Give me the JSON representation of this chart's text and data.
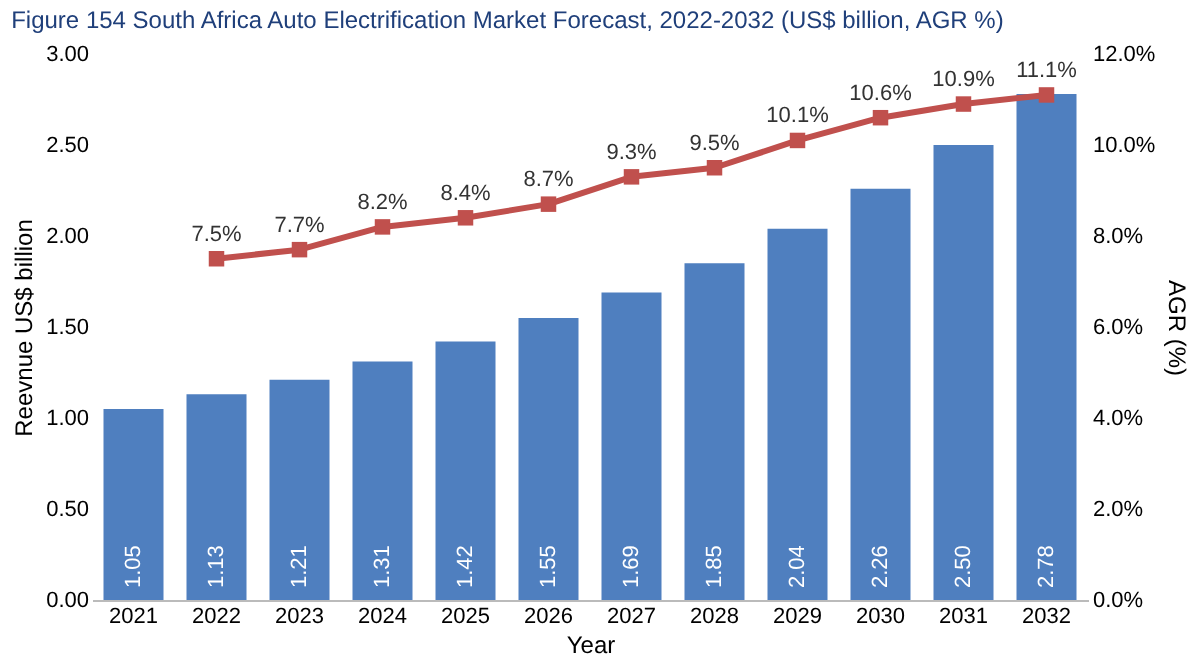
{
  "chart_data": {
    "type": "bar",
    "title": "Figure 154 South Africa Auto Electrification Market Forecast, 2022-2032 (US$ billion, AGR %)",
    "xlabel": "Year",
    "ylabel": "Reevnue US$ billion",
    "y2label": "AGR (%)",
    "categories": [
      "2021",
      "2022",
      "2023",
      "2024",
      "2025",
      "2026",
      "2027",
      "2028",
      "2029",
      "2030",
      "2031",
      "2032"
    ],
    "series": [
      {
        "color": "#4f7fbf",
        "values": [
          1.05,
          1.13,
          1.21,
          1.31,
          1.42,
          1.55,
          1.69,
          1.85,
          2.04,
          2.26,
          2.5,
          2.78
        ],
        "value_labels": [
          "1.05",
          "1.13",
          "1.21",
          "1.31",
          "1.42",
          "1.55",
          "1.69",
          "1.85",
          "2.04",
          "2.26",
          "2.50",
          "2.78"
        ]
      },
      {
        "type": "line",
        "axis": "y2",
        "color": "#c0504d",
        "marker": "square",
        "line_style": "solid",
        "values": [
          null,
          7.5,
          7.7,
          8.2,
          8.4,
          8.7,
          9.3,
          9.5,
          10.1,
          10.6,
          10.9,
          11.1
        ],
        "value_labels": [
          null,
          "7.5%",
          "7.7%",
          "8.2%",
          "8.4%",
          "8.7%",
          "9.3%",
          "9.5%",
          "10.1%",
          "10.6%",
          "10.9%",
          "11.1%"
        ]
      }
    ],
    "ylim": [
      0,
      3
    ],
    "yticks": [
      {
        "value": 0,
        "label": "0.00"
      },
      {
        "value": 0.5,
        "label": "0.50"
      },
      {
        "value": 1,
        "label": "1.00"
      },
      {
        "value": 1.5,
        "label": "1.50"
      },
      {
        "value": 2,
        "label": "2.00"
      },
      {
        "value": 2.5,
        "label": "2.50"
      },
      {
        "value": 3,
        "label": "3.00"
      }
    ],
    "y2lim": [
      0,
      12
    ],
    "y2ticks": [
      {
        "value": 0,
        "label": "0.0%"
      },
      {
        "value": 2,
        "label": "2.0%"
      },
      {
        "value": 4,
        "label": "4.0%"
      },
      {
        "value": 6,
        "label": "6.0%"
      },
      {
        "value": 8,
        "label": "8.0%"
      },
      {
        "value": 10,
        "label": "10.0%"
      },
      {
        "value": 12,
        "label": "12.0%"
      }
    ],
    "grid": false
  }
}
